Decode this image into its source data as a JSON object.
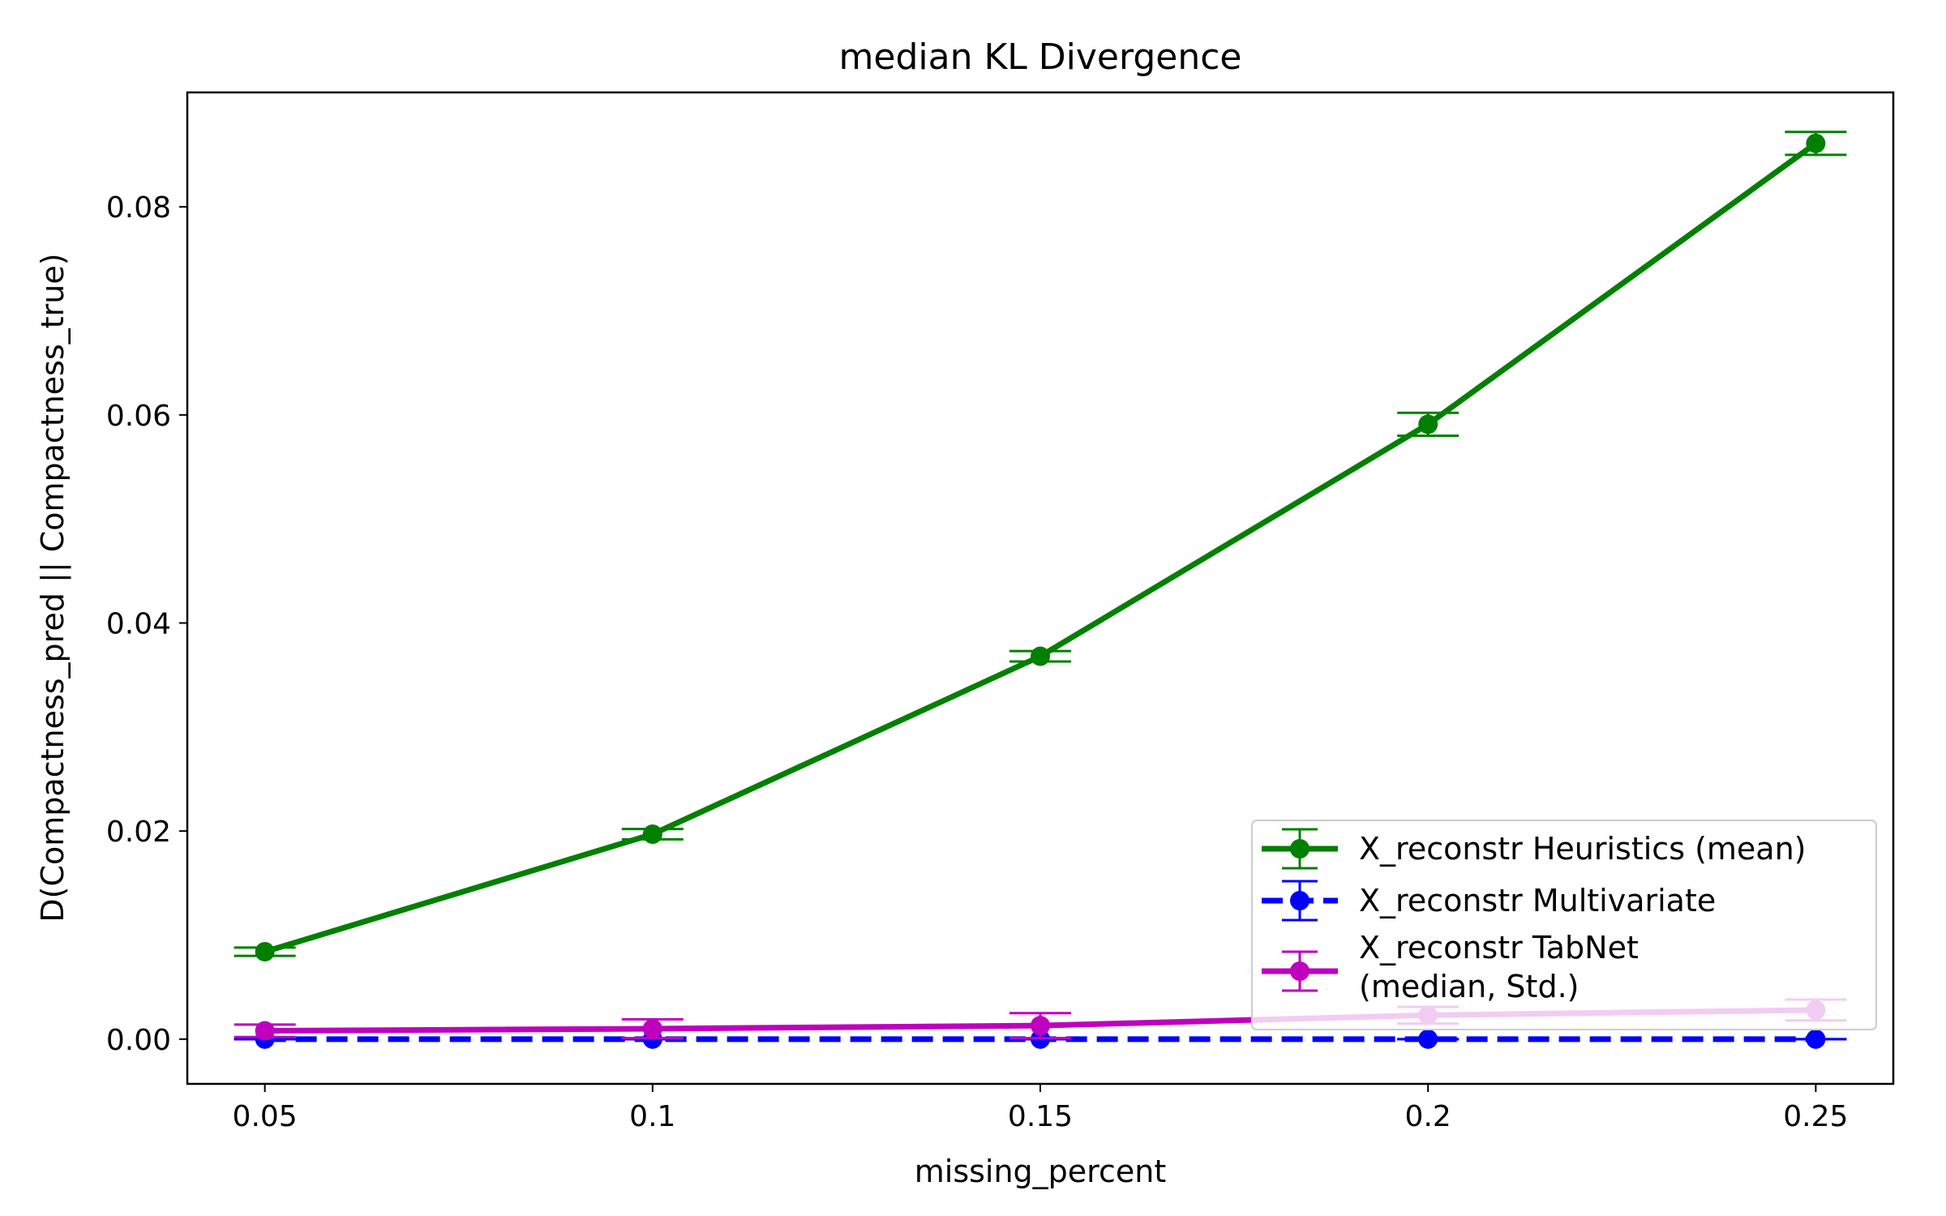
{
  "chart_data": {
    "type": "line",
    "title": "median KL Divergence",
    "xlabel": "missing_percent",
    "ylabel": "D(Compactness_pred || Compactness_true)",
    "x": [
      0.05,
      0.1,
      0.15,
      0.2,
      0.25
    ],
    "x_tick_labels": [
      "0.05",
      "0.1",
      "0.15",
      "0.2",
      "0.25"
    ],
    "y_ticks": [
      0.0,
      0.02,
      0.04,
      0.06,
      0.08
    ],
    "y_tick_labels": [
      "0.00",
      "0.02",
      "0.04",
      "0.06",
      "0.08"
    ],
    "xlim": [
      0.04,
      0.26
    ],
    "ylim": [
      -0.0043,
      0.091
    ],
    "grid": false,
    "legend_position": "lower-right",
    "series": [
      {
        "name": "X_reconstr Heuristics (mean)",
        "color": "#008000",
        "line_style": "solid",
        "values": [
          0.0084,
          0.0197,
          0.0368,
          0.0591,
          0.0861
        ],
        "errors": [
          0.0004,
          0.0005,
          0.0005,
          0.0011,
          0.0011
        ]
      },
      {
        "name": "X_reconstr Multivariate",
        "color": "#0000ff",
        "line_style": "dashed",
        "values": [
          0.0,
          0.0,
          0.0,
          0.0,
          0.0
        ],
        "errors": [
          0.0,
          0.0,
          0.0,
          0.0,
          0.0
        ]
      },
      {
        "name": "X_reconstr TabNet\n(median, Std.)",
        "color": "#bf00bf",
        "line_style": "solid",
        "values": [
          0.0008,
          0.001,
          0.0013,
          0.0023,
          0.0028
        ],
        "errors": [
          0.0006,
          0.0009,
          0.0012,
          0.0008,
          0.001
        ]
      }
    ]
  }
}
